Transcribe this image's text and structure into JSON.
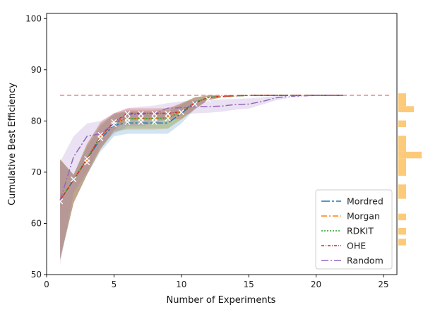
{
  "chart_data": {
    "type": "line",
    "title": "",
    "xlabel": "Number of Experiments",
    "ylabel": "Cumulative Best Efficiency",
    "xlim": [
      0,
      26
    ],
    "ylim": [
      50,
      101
    ],
    "xticks": [
      "0",
      "5",
      "10",
      "15",
      "20",
      "25"
    ],
    "yticks": [
      "50",
      "60",
      "70",
      "80",
      "90",
      "100"
    ],
    "grid": false,
    "legend_position": "lower-right",
    "reference_line": {
      "y": 85,
      "color": "#f08080",
      "style": "dashed"
    },
    "series": [
      {
        "name": "Mordred",
        "color": "#1f77b4",
        "dash": "12,3,3,3",
        "x": [
          1,
          2,
          3,
          4,
          5,
          6,
          7,
          8,
          9,
          10,
          11,
          12,
          13,
          14,
          15,
          16,
          17,
          18,
          19,
          20,
          21,
          22
        ],
        "y": [
          64.5,
          68.5,
          72.5,
          76.5,
          79.2,
          79.6,
          79.6,
          79.6,
          79.6,
          81.5,
          83.5,
          84.6,
          84.8,
          84.9,
          85.0,
          85.0,
          85.0,
          85.0,
          85.0,
          85.0,
          85.0,
          85.0
        ],
        "lower": [
          53,
          64,
          69.5,
          74,
          77,
          77.5,
          77.5,
          77.5,
          77.5,
          79.5,
          82.3,
          84.1,
          84.6,
          84.8,
          84.9,
          85,
          85,
          85,
          85,
          85,
          85,
          85
        ],
        "upper": [
          72.5,
          69.5,
          75,
          79,
          81.5,
          81.8,
          81.8,
          81.8,
          81.8,
          83.2,
          84.6,
          85.0,
          85.0,
          85.0,
          85.0,
          85,
          85,
          85,
          85,
          85,
          85,
          85
        ]
      },
      {
        "name": "Morgan",
        "color": "#ff7f0e",
        "dash": "8,3,2,3",
        "x": [
          1,
          2,
          3,
          4,
          5,
          6,
          7,
          8,
          9,
          10,
          11,
          12,
          13,
          14,
          15,
          16,
          17,
          18,
          19,
          20,
          21,
          22
        ],
        "y": [
          64.5,
          68.5,
          72.5,
          77.0,
          79.8,
          80.5,
          80.5,
          80.5,
          80.8,
          81.8,
          83.5,
          84.6,
          84.8,
          84.9,
          85.0,
          85.0,
          85.0,
          85.0,
          85.0,
          85.0,
          85.0,
          85.0
        ],
        "lower": [
          53,
          64,
          69.5,
          74.5,
          78,
          78.3,
          78.3,
          78.3,
          78.5,
          80.3,
          82.3,
          84.1,
          84.6,
          84.8,
          84.9,
          85,
          85,
          85,
          85,
          85,
          85,
          85
        ],
        "upper": [
          72.5,
          69.5,
          75.5,
          79.5,
          81.5,
          82.2,
          82.2,
          82.2,
          82.5,
          83.5,
          84.6,
          85.0,
          85.0,
          85.0,
          85.0,
          85,
          85,
          85,
          85,
          85,
          85,
          85
        ]
      },
      {
        "name": "RDKIT",
        "color": "#2ca02c",
        "dash": "2,2",
        "x": [
          1,
          2,
          3,
          4,
          5,
          6,
          7,
          8,
          9,
          10,
          11,
          12,
          13,
          14,
          15,
          16,
          17,
          18,
          19,
          20,
          21,
          22
        ],
        "y": [
          64.5,
          68.5,
          72.8,
          77.0,
          79.5,
          80.5,
          80.5,
          80.5,
          80.6,
          81.8,
          83.6,
          84.6,
          84.8,
          84.9,
          85.0,
          85.0,
          85.0,
          85.0,
          85.0,
          85.0,
          85.0,
          85.0
        ],
        "lower": [
          53,
          64,
          69.5,
          74.5,
          77.8,
          78.5,
          78.5,
          78.5,
          78.5,
          80.3,
          82.3,
          84.1,
          84.6,
          84.8,
          84.9,
          85,
          85,
          85,
          85,
          85,
          85,
          85
        ],
        "upper": [
          72.5,
          69.5,
          75.5,
          79.5,
          81.2,
          82.0,
          82.0,
          82.0,
          82.2,
          83.5,
          84.6,
          85.0,
          85.0,
          85.0,
          85.0,
          85,
          85,
          85,
          85,
          85,
          85,
          85
        ]
      },
      {
        "name": "OHE",
        "color": "#d62728",
        "dash": "4,2,1,2",
        "x": [
          1,
          2,
          3,
          4,
          5,
          6,
          7,
          8,
          9,
          10,
          11,
          12,
          13,
          14,
          15,
          16,
          17,
          18,
          19,
          20,
          21,
          22
        ],
        "y": [
          64.5,
          68.5,
          72.5,
          77.0,
          79.8,
          81.5,
          81.5,
          81.5,
          81.5,
          81.8,
          83.5,
          84.6,
          84.8,
          84.9,
          85.0,
          85.0,
          85.0,
          85.0,
          85.0,
          85.0,
          85.0,
          85.0
        ],
        "lower": [
          53,
          64,
          69.5,
          74.5,
          78.2,
          80.2,
          80.2,
          80.2,
          80.2,
          80.4,
          82.3,
          84.1,
          84.6,
          84.8,
          84.9,
          85,
          85,
          85,
          85,
          85,
          85,
          85
        ],
        "upper": [
          72.5,
          69.5,
          75.5,
          79.8,
          81.5,
          82.5,
          82.5,
          82.5,
          82.5,
          83.4,
          84.6,
          85.0,
          85.0,
          85.0,
          85.0,
          85,
          85,
          85,
          85,
          85,
          85,
          85
        ]
      },
      {
        "name": "Random",
        "color": "#9467bd",
        "dash": "10,3,2,3",
        "x": [
          1,
          2,
          3,
          4,
          5,
          6,
          7,
          8,
          9,
          10,
          11,
          12,
          13,
          14,
          15,
          16,
          17,
          18,
          19,
          20,
          21,
          22
        ],
        "y": [
          64.5,
          73.0,
          77.0,
          77.5,
          79.5,
          81.2,
          81.3,
          81.5,
          82.5,
          82.6,
          82.8,
          82.8,
          82.9,
          83.2,
          83.3,
          83.8,
          84.5,
          84.8,
          84.9,
          85.0,
          85.0,
          85.0
        ],
        "lower": [
          52,
          66,
          70,
          75,
          77.5,
          79,
          79,
          79.5,
          80.5,
          81.2,
          81.5,
          81.6,
          81.8,
          82.2,
          82.4,
          83.2,
          84,
          84.5,
          84.7,
          84.9,
          85,
          85
        ],
        "upper": [
          72,
          77,
          79.5,
          80,
          81.5,
          82.5,
          82.8,
          83,
          83.5,
          83.8,
          84,
          84.1,
          84.2,
          84.3,
          84.4,
          84.6,
          84.9,
          85,
          85,
          85,
          85,
          85
        ]
      }
    ],
    "marker_points": [
      {
        "x": 1,
        "y": 64.3
      },
      {
        "x": 2,
        "y": 68.6
      },
      {
        "x": 3,
        "y": 72.6
      },
      {
        "x": 3,
        "y": 71.9
      },
      {
        "x": 4,
        "y": 77.3
      },
      {
        "x": 4,
        "y": 76.6
      },
      {
        "x": 5,
        "y": 79.8
      },
      {
        "x": 5,
        "y": 79.3
      },
      {
        "x": 6,
        "y": 81.4
      },
      {
        "x": 6,
        "y": 80.4
      },
      {
        "x": 6,
        "y": 79.8
      },
      {
        "x": 7,
        "y": 81.4
      },
      {
        "x": 7,
        "y": 80.5
      },
      {
        "x": 7,
        "y": 79.8
      },
      {
        "x": 8,
        "y": 81.4
      },
      {
        "x": 8,
        "y": 80.5
      },
      {
        "x": 8,
        "y": 79.8
      },
      {
        "x": 9,
        "y": 81.4
      },
      {
        "x": 9,
        "y": 80.5
      },
      {
        "x": 10,
        "y": 81.7
      },
      {
        "x": 11,
        "y": 83.3
      },
      {
        "x": 12,
        "y": 84.2
      },
      {
        "x": 13,
        "y": 84.7
      },
      {
        "x": 14,
        "y": 84.8
      },
      {
        "x": 15,
        "y": 84.9
      },
      {
        "x": 18,
        "y": 85.0
      },
      {
        "x": 19,
        "y": 84.9
      }
    ],
    "marginal_histogram": {
      "color": "#fdc46c",
      "bins": [
        {
          "y0": 55.7,
          "y1": 57.0,
          "count": 1
        },
        {
          "y0": 57.8,
          "y1": 59.1,
          "count": 1
        },
        {
          "y0": 60.6,
          "y1": 61.9,
          "count": 1
        },
        {
          "y0": 64.8,
          "y1": 67.6,
          "count": 1
        },
        {
          "y0": 69.3,
          "y1": 72.7,
          "count": 1
        },
        {
          "y0": 72.7,
          "y1": 74.0,
          "count": 3
        },
        {
          "y0": 74.0,
          "y1": 77.1,
          "count": 1
        },
        {
          "y0": 78.8,
          "y1": 80.1,
          "count": 1
        },
        {
          "y0": 81.7,
          "y1": 82.9,
          "count": 2
        },
        {
          "y0": 82.9,
          "y1": 85.4,
          "count": 1
        }
      ]
    }
  }
}
